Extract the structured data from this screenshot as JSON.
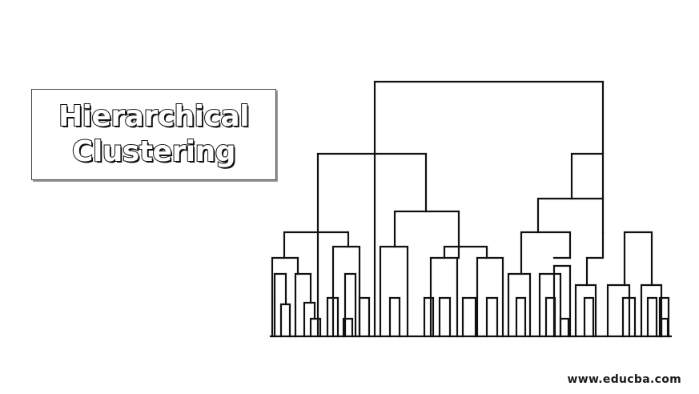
{
  "title": {
    "line1": "Hierarchical",
    "line2": "Clustering"
  },
  "watermark": "www.educba.com",
  "colors": {
    "background": "#ffffff",
    "line": "#111111",
    "title_fill": "#ffffff",
    "title_outline": "#111111"
  }
}
